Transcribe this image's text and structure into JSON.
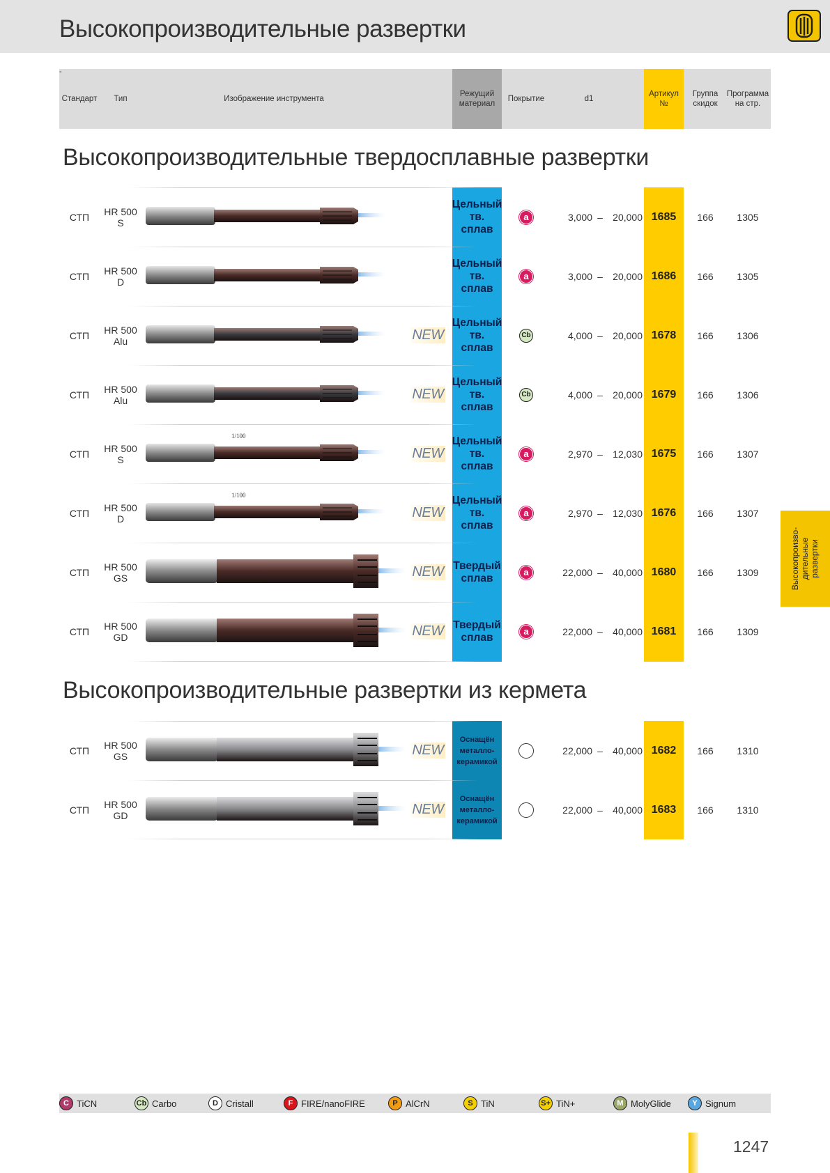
{
  "page": {
    "title": "Высокопроизводительные развертки",
    "page_number": "1247",
    "logo": "reamer-logo-icon"
  },
  "header": {
    "dash": "-",
    "standard": "Стандарт",
    "type": "Тип",
    "image": "Изображение инструмента",
    "material": "Режущий\nматериал",
    "coating": "Покрытие",
    "d1": "d1",
    "article": "Артикул\n№",
    "discount": "Группа\nскидок",
    "program": "Программа\nна стр."
  },
  "colors": {
    "material_blue": "#1aa6e0",
    "cermet_blue": "#0d86b3",
    "article_yellow": "#ffcc00",
    "header_gray": "#a8a8a8"
  },
  "sections": [
    {
      "title": "Высокопроизводительные твердосплавные развертки",
      "rows": [
        {
          "standard": "СТП",
          "type": "HR 500\nS",
          "new": "",
          "material": "Цельный\nтв.\nсплав",
          "coating": "a",
          "d_from": "3,000",
          "dash": "–",
          "d_to": "20,000",
          "article": "1685",
          "discount": "166",
          "program": "1305"
        },
        {
          "standard": "СТП",
          "type": "HR 500\nD",
          "new": "",
          "material": "Цельный\nтв.\nсплав",
          "coating": "a",
          "d_from": "3,000",
          "dash": "–",
          "d_to": "20,000",
          "article": "1686",
          "discount": "166",
          "program": "1305"
        },
        {
          "standard": "СТП",
          "type": "HR 500\nAlu",
          "new": "NEW",
          "material": "Цельный\nтв.\nсплав",
          "coating": "Cb",
          "d_from": "4,000",
          "dash": "–",
          "d_to": "20,000",
          "article": "1678",
          "discount": "166",
          "program": "1306"
        },
        {
          "standard": "СТП",
          "type": "HR 500\nAlu",
          "new": "NEW",
          "material": "Цельный\nтв.\nсплав",
          "coating": "Cb",
          "d_from": "4,000",
          "dash": "–",
          "d_to": "20,000",
          "article": "1679",
          "discount": "166",
          "program": "1306"
        },
        {
          "standard": "СТП",
          "type": "HR 500\nS",
          "new": "NEW",
          "taper": "1/100",
          "material": "Цельный\nтв.\nсплав",
          "coating": "a",
          "d_from": "2,970",
          "dash": "–",
          "d_to": "12,030",
          "article": "1675",
          "discount": "166",
          "program": "1307"
        },
        {
          "standard": "СТП",
          "type": "HR 500\nD",
          "new": "NEW",
          "taper": "1/100",
          "material": "Цельный\nтв.\nсплав",
          "coating": "a",
          "d_from": "2,970",
          "dash": "–",
          "d_to": "12,030",
          "article": "1676",
          "discount": "166",
          "program": "1307"
        },
        {
          "standard": "СТП",
          "type": "HR 500\nGS",
          "new": "NEW",
          "material": "Твердый\nсплав",
          "coating": "a",
          "d_from": "22,000",
          "dash": "–",
          "d_to": "40,000",
          "article": "1680",
          "discount": "166",
          "program": "1309"
        },
        {
          "standard": "СТП",
          "type": "HR 500\nGD",
          "new": "NEW",
          "material": "Твердый\nсплав",
          "coating": "a",
          "d_from": "22,000",
          "dash": "–",
          "d_to": "40,000",
          "article": "1681",
          "discount": "166",
          "program": "1309"
        }
      ]
    },
    {
      "title": "Высокопроизводительные развертки из кермета",
      "rows": [
        {
          "standard": "СТП",
          "type": "HR 500\nGS",
          "new": "NEW",
          "material": "Оснащён\nметалло-\nкерамикой",
          "coating": "",
          "d_from": "22,000",
          "dash": "–",
          "d_to": "40,000",
          "article": "1682",
          "discount": "166",
          "program": "1310"
        },
        {
          "standard": "СТП",
          "type": "HR 500\nGD",
          "new": "NEW",
          "material": "Оснащён\nметалло-\nкерамикой",
          "coating": "",
          "d_from": "22,000",
          "dash": "–",
          "d_to": "40,000",
          "article": "1683",
          "discount": "166",
          "program": "1310"
        }
      ]
    }
  ],
  "legend": [
    {
      "symbol": "C",
      "label": "TiCN",
      "color": "#b03a6a"
    },
    {
      "symbol": "Cb",
      "label": "Carbo",
      "color": "#d4e8c2"
    },
    {
      "symbol": "D",
      "label": "Cristall",
      "color": "#ffffff"
    },
    {
      "symbol": "F",
      "label": "FIRE/nanoFIRE",
      "color": "#d8161b"
    },
    {
      "symbol": "P",
      "label": "AlCrN",
      "color": "#f39c12"
    },
    {
      "symbol": "S",
      "label": "TiN",
      "color": "#f5d000"
    },
    {
      "symbol": "S+",
      "label": "TiN+",
      "color": "#f5d000"
    },
    {
      "symbol": "M",
      "label": "MolyGlide",
      "color": "#9aa86a"
    },
    {
      "symbol": "Y",
      "label": "Signum",
      "color": "#5aa7e0"
    }
  ],
  "side_tab": "Высокопроизво-\nдительные\nразвертки"
}
